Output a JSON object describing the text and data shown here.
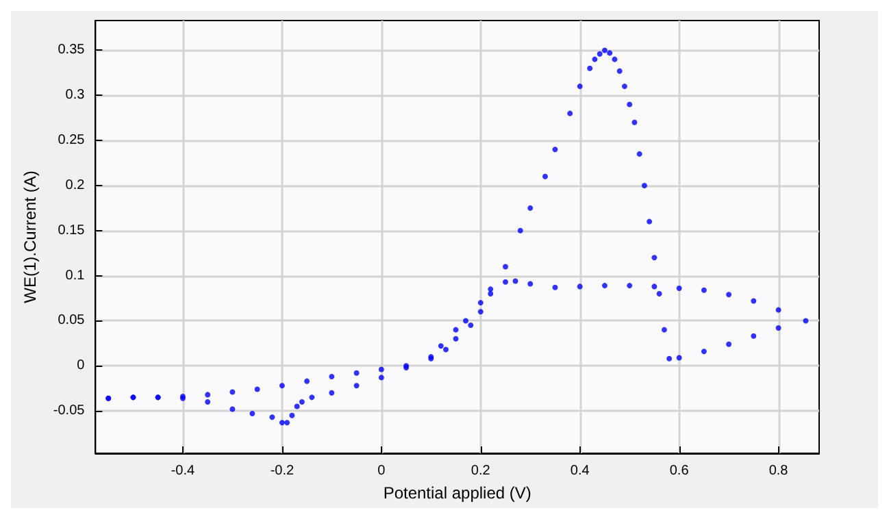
{
  "chart_data": {
    "type": "scatter",
    "xlabel": "Potential applied (V)",
    "ylabel": "WE(1).Current (A)",
    "xlim": [
      -0.576,
      0.882
    ],
    "ylim": [
      -0.097,
      0.383
    ],
    "xticks": [
      -0.4,
      -0.2,
      0,
      0.2,
      0.4,
      0.6,
      0.8
    ],
    "yticks": [
      -0.05,
      0,
      0.05,
      0.1,
      0.15,
      0.2,
      0.25,
      0.3,
      0.35
    ],
    "grid": true,
    "marker": "circle",
    "series": [
      {
        "color": "#0000ff",
        "x": [
          -0.55,
          -0.5,
          -0.45,
          -0.4,
          -0.35,
          -0.3,
          -0.25,
          -0.2,
          -0.15,
          -0.1,
          -0.05,
          0,
          0.05,
          0.1,
          0.13,
          0.15,
          0.18,
          0.2,
          0.22,
          0.25,
          0.28,
          0.3,
          0.33,
          0.35,
          0.38,
          0.4,
          0.42,
          0.43,
          0.44,
          0.45,
          0.46,
          0.47,
          0.48,
          0.49,
          0.5,
          0.51,
          0.52,
          0.53,
          0.54,
          0.55,
          0.56,
          0.57,
          0.58,
          0.6,
          0.65,
          0.7,
          0.75,
          0.8,
          0.855,
          0.8,
          0.75,
          0.7,
          0.65,
          0.6,
          0.55,
          0.5,
          0.45,
          0.4,
          0.35,
          0.3,
          0.27,
          0.25,
          0.22,
          0.2,
          0.17,
          0.15,
          0.12,
          0.1,
          0.05,
          0,
          -0.05,
          -0.1,
          -0.14,
          -0.16,
          -0.17,
          -0.18,
          -0.19,
          -0.2,
          -0.22,
          -0.26,
          -0.3,
          -0.35,
          -0.4,
          -0.45,
          -0.5,
          -0.55
        ],
        "values": [
          -0.036,
          -0.035,
          -0.035,
          -0.034,
          -0.032,
          -0.029,
          -0.026,
          -0.022,
          -0.017,
          -0.012,
          -0.008,
          -0.004,
          0,
          0.008,
          0.018,
          0.03,
          0.045,
          0.06,
          0.08,
          0.11,
          0.15,
          0.175,
          0.21,
          0.24,
          0.28,
          0.31,
          0.33,
          0.34,
          0.346,
          0.35,
          0.347,
          0.34,
          0.327,
          0.31,
          0.29,
          0.27,
          0.235,
          0.2,
          0.16,
          0.12,
          0.08,
          0.04,
          0.008,
          0.009,
          0.016,
          0.024,
          0.033,
          0.042,
          0.05,
          0.062,
          0.072,
          0.079,
          0.084,
          0.086,
          0.088,
          0.089,
          0.089,
          0.088,
          0.087,
          0.091,
          0.094,
          0.093,
          0.085,
          0.07,
          0.05,
          0.04,
          0.022,
          0.01,
          -0.002,
          -0.013,
          -0.022,
          -0.03,
          -0.035,
          -0.04,
          -0.045,
          -0.055,
          -0.063,
          -0.063,
          -0.057,
          -0.053,
          -0.048,
          -0.04,
          -0.036,
          -0.035,
          -0.035,
          -0.036
        ]
      }
    ]
  }
}
